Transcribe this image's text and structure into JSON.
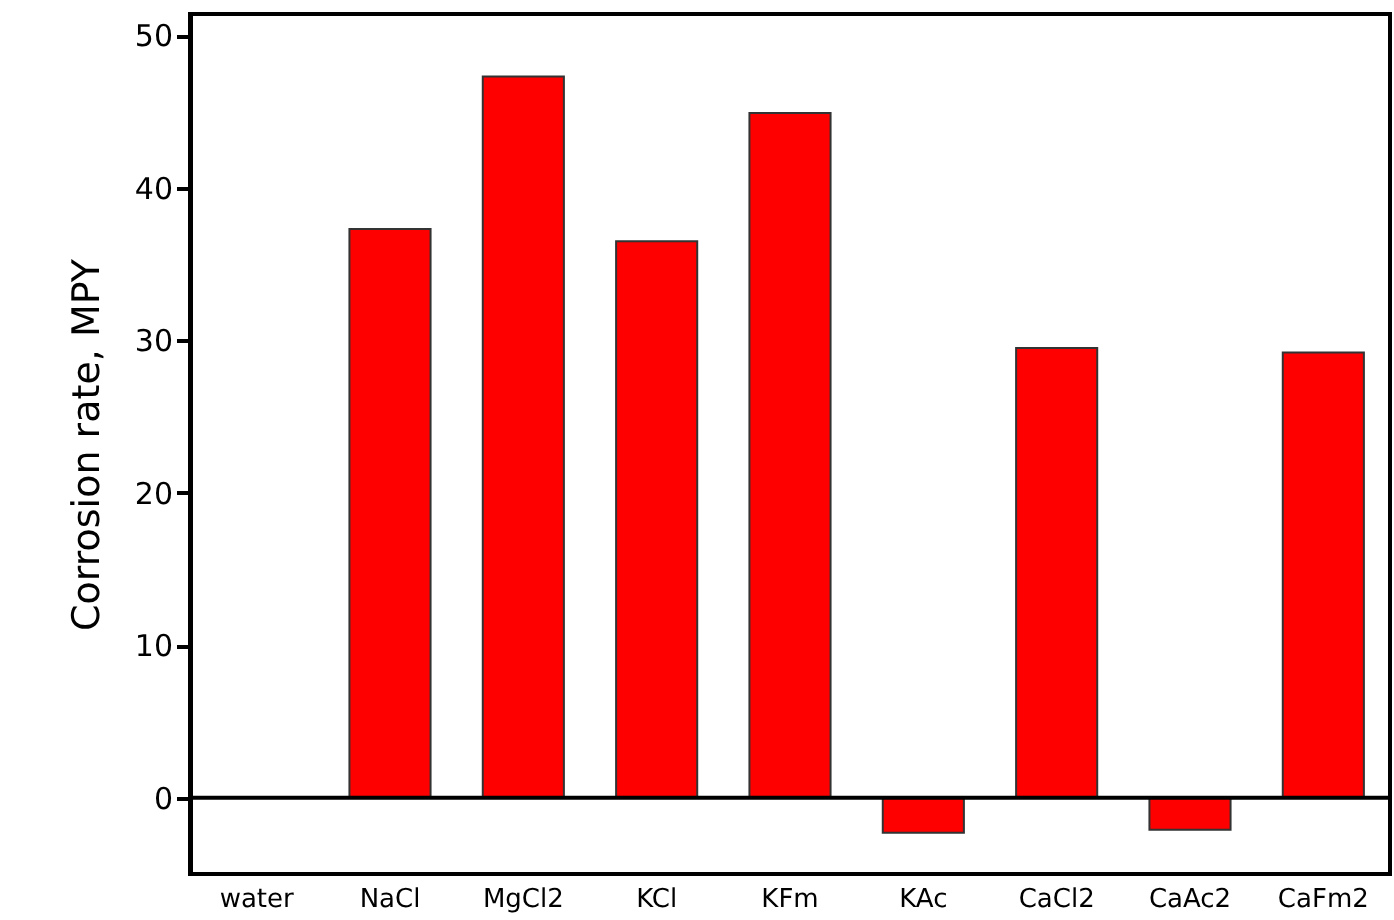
{
  "chart_data": {
    "type": "bar",
    "ylabel": "Corrosion rate, MPY",
    "categories": [
      "water",
      "NaCl",
      "MgCl2",
      "KCl",
      "KFm",
      "KAc",
      "CaCl2",
      "CaAc2",
      "CaFm2"
    ],
    "values": [
      0,
      37.3,
      47.3,
      36.5,
      44.9,
      -2.3,
      29.5,
      -2.1,
      29.2
    ],
    "color": "#ff0000",
    "ylim": [
      -5,
      51.4
    ],
    "yticks": [
      0,
      10,
      20,
      30,
      40,
      50
    ]
  }
}
